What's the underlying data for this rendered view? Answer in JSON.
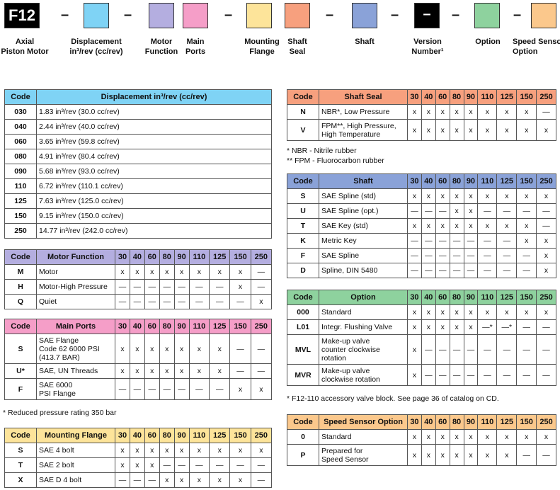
{
  "header": {
    "model_code": "F12",
    "version_mark": "–",
    "dash": "–",
    "labels": {
      "axial": "Axial\nPiston Motor",
      "displacement": "Displacement\nin³/rev (cc/rev)",
      "motor_function": "Motor\nFunction",
      "main_ports": "Main\nPorts",
      "mounting_flange": "Mounting\nFlange",
      "shaft_seal": "Shaft\nSeal",
      "shaft": "Shaft",
      "version_number": "Version\nNumber¹",
      "option": "Option",
      "speed_sensor": "Speed Sensor\nOption"
    },
    "colors": {
      "displacement": "#7fd3f5",
      "motor_function": "#b4aee0",
      "main_ports": "#f59ec8",
      "mounting_flange": "#fde49a",
      "shaft_seal": "#f7a07e",
      "shaft": "#8aa2d8",
      "option": "#8ed29e",
      "speed_sensor": "#fbc88c"
    }
  },
  "sizes": [
    "30",
    "40",
    "60",
    "80",
    "90",
    "110",
    "125",
    "150",
    "250"
  ],
  "displacement": {
    "header_code": "Code",
    "header_desc": "Displacement in³/rev (cc/rev)",
    "rows": [
      {
        "code": "030",
        "desc": "1.83 in³/rev (30.0 cc/rev)"
      },
      {
        "code": "040",
        "desc": "2.44 in³/rev (40.0 cc/rev)"
      },
      {
        "code": "060",
        "desc": "3.65 in³/rev (59.8 cc/rev)"
      },
      {
        "code": "080",
        "desc": "4.91 in³/rev (80.4 cc/rev)"
      },
      {
        "code": "090",
        "desc": "5.68 in³/rev (93.0 cc/rev)"
      },
      {
        "code": "110",
        "desc": "6.72 in³/rev (110.1 cc/rev)"
      },
      {
        "code": "125",
        "desc": "7.63 in³/rev (125.0 cc/rev)"
      },
      {
        "code": "150",
        "desc": "9.15 in³/rev (150.0 cc/rev)"
      },
      {
        "code": "250",
        "desc": "14.77 in³/rev (242.0 cc/rev)"
      }
    ]
  },
  "motor_function": {
    "header_code": "Code",
    "header_desc": "Motor Function",
    "rows": [
      {
        "code": "M",
        "desc": "Motor",
        "vals": [
          "x",
          "x",
          "x",
          "x",
          "x",
          "x",
          "x",
          "x",
          "—"
        ]
      },
      {
        "code": "H",
        "desc": "Motor-High Pressure",
        "vals": [
          "—",
          "—",
          "—",
          "—",
          "—",
          "—",
          "—",
          "x",
          "—"
        ]
      },
      {
        "code": "Q",
        "desc": "Quiet",
        "vals": [
          "—",
          "—",
          "—",
          "—",
          "—",
          "—",
          "—",
          "—",
          "x"
        ]
      }
    ]
  },
  "main_ports": {
    "header_code": "Code",
    "header_desc": "Main Ports",
    "rows": [
      {
        "code": "S",
        "desc": "SAE Flange\nCode 62 6000 PSI\n(413.7 BAR)",
        "vals": [
          "x",
          "x",
          "x",
          "x",
          "x",
          "x",
          "x",
          "—",
          "—"
        ]
      },
      {
        "code": "U*",
        "desc": "SAE, UN Threads",
        "vals": [
          "x",
          "x",
          "x",
          "x",
          "x",
          "x",
          "x",
          "—",
          "—"
        ]
      },
      {
        "code": "F",
        "desc": "SAE 6000\nPSI Flange",
        "vals": [
          "—",
          "—",
          "—",
          "—",
          "—",
          "—",
          "—",
          "x",
          "x"
        ]
      }
    ],
    "note": "* Reduced pressure rating 350 bar"
  },
  "mounting_flange": {
    "header_code": "Code",
    "header_desc": "Mounting Flange",
    "rows": [
      {
        "code": "S",
        "desc": "SAE 4 bolt",
        "vals": [
          "x",
          "x",
          "x",
          "x",
          "x",
          "x",
          "x",
          "x",
          "x"
        ]
      },
      {
        "code": "T",
        "desc": "SAE 2 bolt",
        "vals": [
          "x",
          "x",
          "x",
          "—",
          "—",
          "—",
          "—",
          "—",
          "—"
        ]
      },
      {
        "code": "X",
        "desc": "SAE D 4 bolt",
        "vals": [
          "—",
          "—",
          "—",
          "x",
          "x",
          "x",
          "x",
          "x",
          "—"
        ]
      }
    ]
  },
  "shaft_seal": {
    "header_code": "Code",
    "header_desc": "Shaft Seal",
    "rows": [
      {
        "code": "N",
        "desc": "NBR*, Low Pressure",
        "vals": [
          "x",
          "x",
          "x",
          "x",
          "x",
          "x",
          "x",
          "x",
          "—"
        ]
      },
      {
        "code": "V",
        "desc": "FPM**, High Pressure,\nHigh Temperature",
        "vals": [
          "x",
          "x",
          "x",
          "x",
          "x",
          "x",
          "x",
          "x",
          "x"
        ]
      }
    ],
    "note1": "* NBR - Nitrile rubber",
    "note2": "** FPM - Fluorocarbon rubber"
  },
  "shaft": {
    "header_code": "Code",
    "header_desc": "Shaft",
    "rows": [
      {
        "code": "S",
        "desc": "SAE Spline (std)",
        "vals": [
          "x",
          "x",
          "x",
          "x",
          "x",
          "x",
          "x",
          "x",
          "x"
        ]
      },
      {
        "code": "U",
        "desc": "SAE Spline (opt.)",
        "vals": [
          "—",
          "—",
          "—",
          "x",
          "x",
          "—",
          "—",
          "—",
          "—"
        ]
      },
      {
        "code": "T",
        "desc": "SAE Key (std)",
        "vals": [
          "x",
          "x",
          "x",
          "x",
          "x",
          "x",
          "x",
          "x",
          "—"
        ]
      },
      {
        "code": "K",
        "desc": "Metric Key",
        "vals": [
          "—",
          "—",
          "—",
          "—",
          "—",
          "—",
          "—",
          "x",
          "x"
        ]
      },
      {
        "code": "F",
        "desc": "SAE Spline",
        "vals": [
          "—",
          "—",
          "—",
          "—",
          "—",
          "—",
          "—",
          "—",
          "x"
        ]
      },
      {
        "code": "D",
        "desc": "Spline, DIN 5480",
        "vals": [
          "—",
          "—",
          "—",
          "—",
          "—",
          "—",
          "—",
          "—",
          "x"
        ]
      }
    ]
  },
  "option": {
    "header_code": "Code",
    "header_desc": "Option",
    "rows": [
      {
        "code": "000",
        "desc": "Standard",
        "vals": [
          "x",
          "x",
          "x",
          "x",
          "x",
          "x",
          "x",
          "x",
          "x"
        ]
      },
      {
        "code": "L01",
        "desc": "Integr. Flushing Valve",
        "vals": [
          "x",
          "x",
          "x",
          "x",
          "x",
          "—*",
          "—*",
          "—",
          "—"
        ]
      },
      {
        "code": "MVL",
        "desc": "Make-up valve\ncounter clockwise\nrotation",
        "vals": [
          "x",
          "—",
          "—",
          "—",
          "—",
          "—",
          "—",
          "—",
          "—"
        ]
      },
      {
        "code": "MVR",
        "desc": "Make-up valve\nclockwise rotation",
        "vals": [
          "x",
          "—",
          "—",
          "—",
          "—",
          "—",
          "—",
          "—",
          "—"
        ]
      }
    ],
    "note": "* F12-110 accessory valve block. See page 36 of catalog on CD."
  },
  "speed_sensor": {
    "header_code": "Code",
    "header_desc": "Speed Sensor Option",
    "rows": [
      {
        "code": "0",
        "desc": "Standard",
        "vals": [
          "x",
          "x",
          "x",
          "x",
          "x",
          "x",
          "x",
          "x",
          "x"
        ]
      },
      {
        "code": "P",
        "desc": "Prepared for\nSpeed Sensor",
        "vals": [
          "x",
          "x",
          "x",
          "x",
          "x",
          "x",
          "x",
          "—",
          "—"
        ]
      }
    ]
  }
}
